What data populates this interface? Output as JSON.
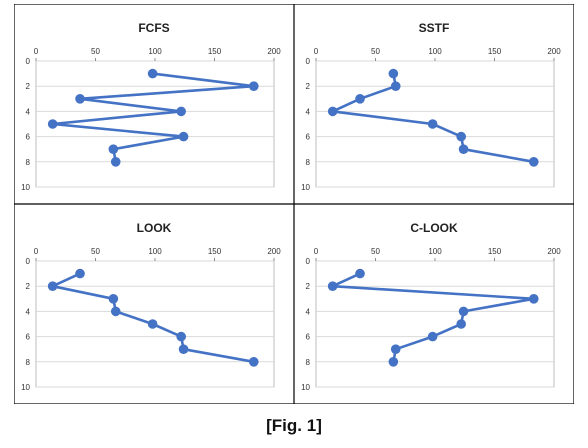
{
  "figure": {
    "caption": "[Fig. 1]"
  },
  "chart_data": [
    {
      "type": "line",
      "title": "FCFS",
      "xlim": [
        0,
        200
      ],
      "ylim": [
        0,
        10
      ],
      "y_inverted": true,
      "x_ticks": [
        "0",
        "50",
        "100",
        "150",
        "200"
      ],
      "y_ticks": [
        "0",
        "2",
        "4",
        "6",
        "8",
        "10"
      ],
      "grid": "horizontal",
      "series": [
        {
          "x": [
            98,
            183,
            37,
            122,
            14,
            124,
            65,
            67
          ],
          "y": [
            1,
            2,
            3,
            4,
            5,
            6,
            7,
            8
          ]
        }
      ],
      "color": "#4472C4"
    },
    {
      "type": "line",
      "title": "SSTF",
      "xlim": [
        0,
        200
      ],
      "ylim": [
        0,
        10
      ],
      "y_inverted": true,
      "x_ticks": [
        "0",
        "50",
        "100",
        "150",
        "200"
      ],
      "y_ticks": [
        "0",
        "2",
        "4",
        "6",
        "8",
        "10"
      ],
      "grid": "horizontal",
      "series": [
        {
          "x": [
            65,
            67,
            37,
            14,
            98,
            122,
            124,
            183
          ],
          "y": [
            1,
            2,
            3,
            4,
            5,
            6,
            7,
            8
          ]
        }
      ],
      "color": "#4472C4"
    },
    {
      "type": "line",
      "title": "LOOK",
      "xlim": [
        0,
        200
      ],
      "ylim": [
        0,
        10
      ],
      "y_inverted": true,
      "x_ticks": [
        "0",
        "50",
        "100",
        "150",
        "200"
      ],
      "y_ticks": [
        "0",
        "2",
        "4",
        "6",
        "8",
        "10"
      ],
      "grid": "horizontal",
      "series": [
        {
          "x": [
            37,
            14,
            65,
            67,
            98,
            122,
            124,
            183
          ],
          "y": [
            1,
            2,
            3,
            4,
            5,
            6,
            7,
            8
          ]
        }
      ],
      "color": "#4472C4"
    },
    {
      "type": "line",
      "title": "C-LOOK",
      "xlim": [
        0,
        200
      ],
      "ylim": [
        0,
        10
      ],
      "y_inverted": true,
      "x_ticks": [
        "0",
        "50",
        "100",
        "150",
        "200"
      ],
      "y_ticks": [
        "0",
        "2",
        "4",
        "6",
        "8",
        "10"
      ],
      "grid": "horizontal",
      "series": [
        {
          "x": [
            37,
            14,
            183,
            124,
            122,
            98,
            67,
            65
          ],
          "y": [
            1,
            2,
            3,
            4,
            5,
            6,
            7,
            8
          ]
        }
      ],
      "color": "#4472C4"
    }
  ]
}
